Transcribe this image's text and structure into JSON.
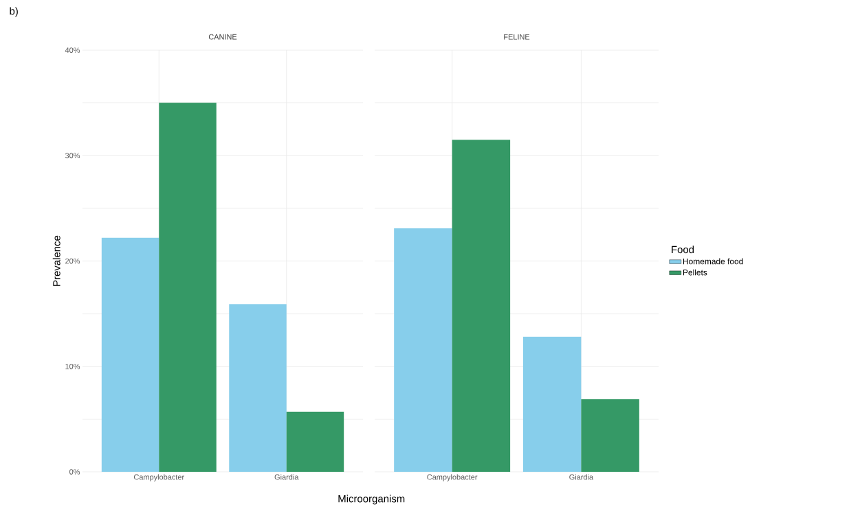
{
  "chart_data": [
    {
      "type": "bar",
      "title": "CANINE",
      "ylabel": "Prevalence",
      "xlabel": "Microorganism",
      "annotations": [
        "b)"
      ],
      "categories": [
        "Campylobacter",
        "Giardia"
      ],
      "series": [
        {
          "color": "#87ceeb",
          "values": [
            22.2,
            15.9
          ]
        },
        {
          "color": "#359966",
          "values": [
            35.0,
            5.7
          ]
        }
      ],
      "ylim": [
        0,
        40
      ],
      "yticks": [
        {
          "value": 0,
          "label": "0%"
        },
        {
          "value": 5,
          "label": null
        },
        {
          "value": 10,
          "label": "10%"
        },
        {
          "value": 15,
          "label": null
        },
        {
          "value": 20,
          "label": "20%"
        },
        {
          "value": 25,
          "label": null
        },
        {
          "value": 30,
          "label": "30%"
        },
        {
          "value": 35,
          "label": null
        },
        {
          "value": 40,
          "label": "40%"
        }
      ],
      "grid": true
    },
    {
      "type": "bar",
      "title": "FELINE",
      "legend_title": "Food",
      "legend": "right",
      "tick_labels": "x",
      "categories": [
        "Campylobacter",
        "Giardia"
      ],
      "series": [
        {
          "name": "Homemade food",
          "color": "#87ceeb",
          "values": [
            23.1,
            12.8
          ]
        },
        {
          "name": "Pellets",
          "color": "#359966",
          "values": [
            31.5,
            6.9
          ]
        }
      ],
      "ylim": [
        0,
        40
      ],
      "yticks": [
        {
          "value": 0,
          "label": null
        },
        {
          "value": 5,
          "label": null
        },
        {
          "value": 10,
          "label": null
        },
        {
          "value": 15,
          "label": null
        },
        {
          "value": 20,
          "label": null
        },
        {
          "value": 25,
          "label": null
        },
        {
          "value": 30,
          "label": null
        },
        {
          "value": 35,
          "label": null
        },
        {
          "value": 40,
          "label": null
        }
      ],
      "grid": true
    }
  ]
}
